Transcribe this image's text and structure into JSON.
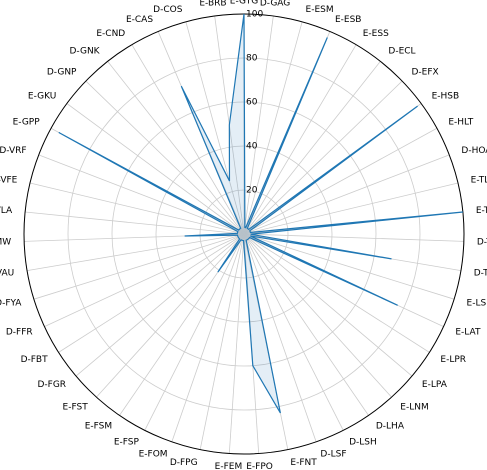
{
  "chart_data": {
    "type": "radar",
    "categories": [
      "E-GTG",
      "D-GAG",
      "E-ESM",
      "E-ESB",
      "E-ESS",
      "D-ECL",
      "D-EFX",
      "E-HSB",
      "E-HLT",
      "D-HOA",
      "E-TLF",
      "E-TUP",
      "D-TSL",
      "D-TTA",
      "E-LSB",
      "E-LAT",
      "E-LPR",
      "E-LPA",
      "E-LNM",
      "D-LHA",
      "D-LSH",
      "D-LSF",
      "E-FNT",
      "E-FPO",
      "E-FEM",
      "D-FPG",
      "E-FOM",
      "E-FSP",
      "E-FSM",
      "E-FST",
      "D-FGR",
      "D-FBT",
      "D-FFR",
      "D-FYA",
      "E-VAU",
      "E-VMW",
      "E-VLA",
      "D-VFE",
      "D-VRF",
      "E-GPP",
      "E-GKU",
      "D-GNP",
      "D-GNK",
      "E-CND",
      "E-CAS",
      "D-COS",
      "E-BRB"
    ],
    "values": [
      100,
      3,
      3,
      97,
      3,
      3,
      3,
      98,
      3,
      3,
      3,
      100,
      3,
      68,
      3,
      77,
      3,
      3,
      3,
      3,
      3,
      3,
      83,
      60,
      3,
      3,
      3,
      3,
      21,
      3,
      3,
      3,
      3,
      3,
      3,
      27,
      3,
      3,
      3,
      96,
      3,
      3,
      3,
      3,
      73,
      25,
      50
    ],
    "color": "#1f77b4",
    "ylim": [
      0,
      100
    ],
    "yticks": [
      20,
      40,
      60,
      80,
      100
    ],
    "grid": true
  }
}
